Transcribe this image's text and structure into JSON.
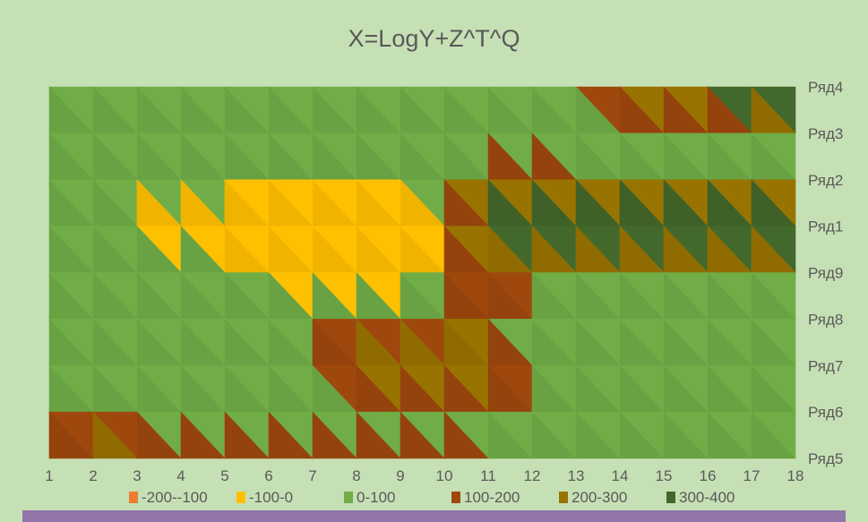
{
  "chart_data": {
    "type": "heatmap",
    "subtype": "surface-contour",
    "title": "X=LogY+Z^T^Q",
    "x": [
      1,
      2,
      3,
      4,
      5,
      6,
      7,
      8,
      9,
      10,
      11,
      12,
      13,
      14,
      15,
      16,
      17,
      18
    ],
    "series_order_top_to_bottom": [
      "Ряд4",
      "Ряд3",
      "Ряд2",
      "Ряд1",
      "Ряд9",
      "Ряд8",
      "Ряд7",
      "Ряд6",
      "Ряд5"
    ],
    "series": [
      {
        "name": "Ряд4",
        "values": [
          50,
          50,
          50,
          50,
          50,
          50,
          50,
          50,
          50,
          50,
          60,
          80,
          150,
          320,
          350,
          380,
          450,
          480
        ]
      },
      {
        "name": "Ряд3",
        "values": [
          50,
          50,
          50,
          50,
          50,
          50,
          50,
          50,
          50,
          50,
          50,
          50,
          50,
          50,
          60,
          60,
          70,
          80
        ]
      },
      {
        "name": "Ряд2",
        "values": [
          50,
          50,
          50,
          50,
          30,
          20,
          10,
          0,
          10,
          50,
          150,
          150,
          120,
          100,
          100,
          100,
          100,
          100
        ]
      },
      {
        "name": "Ряд1",
        "values": [
          50,
          50,
          -40,
          -60,
          -70,
          -90,
          -95,
          -90,
          -150,
          40,
          450,
          450,
          450,
          450,
          450,
          450,
          450,
          450
        ]
      },
      {
        "name": "Ряд9",
        "values": [
          50,
          50,
          50,
          50,
          30,
          -20,
          -50,
          -50,
          -60,
          40,
          350,
          80,
          80,
          80,
          80,
          80,
          80,
          80
        ]
      },
      {
        "name": "Ряд8",
        "values": [
          50,
          50,
          50,
          50,
          50,
          50,
          50,
          50,
          80,
          150,
          160,
          50,
          50,
          50,
          50,
          50,
          50,
          50
        ]
      },
      {
        "name": "Ряд7",
        "values": [
          50,
          50,
          50,
          50,
          50,
          50,
          50,
          300,
          350,
          350,
          350,
          50,
          50,
          50,
          50,
          50,
          50,
          50
        ]
      },
      {
        "name": "Ряд6",
        "values": [
          150,
          50,
          50,
          50,
          50,
          50,
          50,
          50,
          50,
          50,
          50,
          50,
          50,
          50,
          50,
          50,
          50,
          50
        ]
      },
      {
        "name": "Ряд5",
        "values": [
          200,
          200,
          350,
          150,
          150,
          150,
          150,
          150,
          150,
          150,
          150,
          50,
          50,
          50,
          50,
          50,
          50,
          50
        ]
      }
    ],
    "legend": [
      {
        "label": "-200--100",
        "min": -200,
        "max": -100,
        "color": "#ED7D31"
      },
      {
        "label": "-100-0",
        "min": -100,
        "max": 0,
        "color": "#FFC000"
      },
      {
        "label": "0-100",
        "min": 0,
        "max": 100,
        "color": "#70AD47"
      },
      {
        "label": "100-200",
        "min": 100,
        "max": 200,
        "color": "#9E480E"
      },
      {
        "label": "200-300",
        "min": 200,
        "max": 300,
        "color": "#997300"
      },
      {
        "label": "300-400",
        "min": 300,
        "max": 400,
        "color": "#43682B"
      }
    ],
    "above_max_color": "#4a1e06",
    "legend_position": "bottom",
    "grid": false
  }
}
